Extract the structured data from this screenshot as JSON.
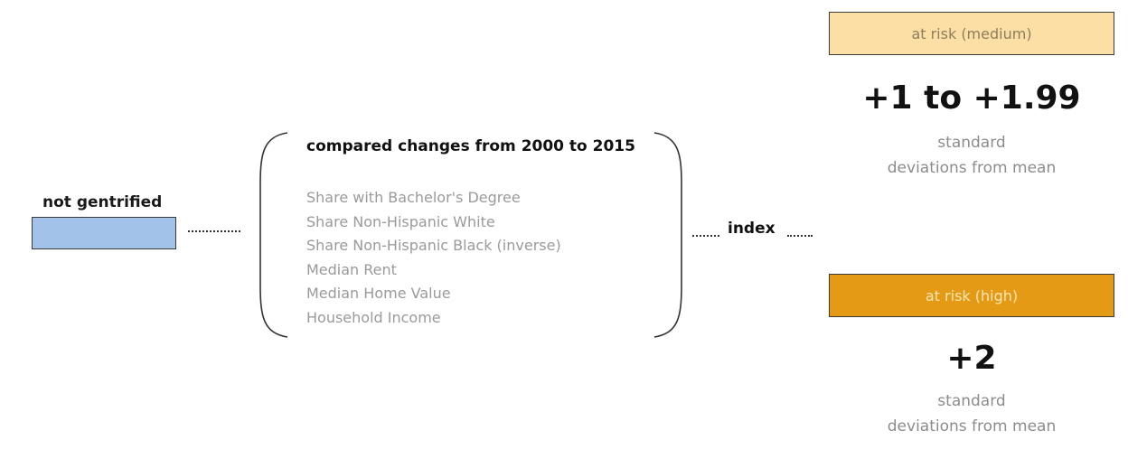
{
  "left": {
    "label": "not gentrified",
    "swatch_color": "#a3c2ea"
  },
  "brace": {
    "title": "compared changes from 2000 to 2015",
    "factors": [
      "Share with Bachelor's Degree",
      "Share Non-Hispanic White",
      "Share Non-Hispanic Black (inverse)",
      "Median Rent",
      "Median Home Value",
      "Household Income"
    ]
  },
  "index": {
    "label": "index"
  },
  "outcomes": {
    "medium": {
      "label": "at risk (medium)",
      "color": "#fcdfa4",
      "value": "+1 to +1.99",
      "unit_line1": "standard",
      "unit_line2": "deviations from mean"
    },
    "high": {
      "label": "at risk (high)",
      "color": "#e49a14",
      "value": "+2",
      "unit_line1": "standard",
      "unit_line2": "deviations from mean"
    }
  }
}
